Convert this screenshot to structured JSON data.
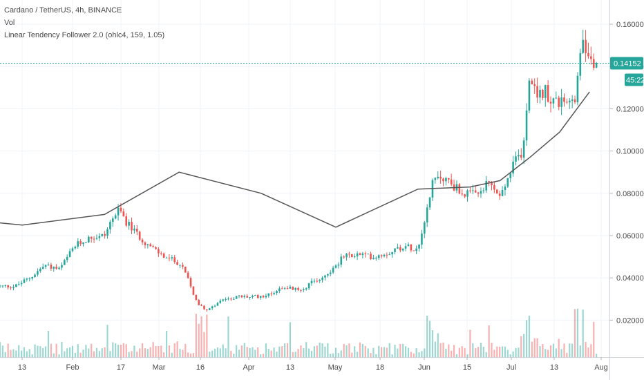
{
  "legend": {
    "symbol_line": "Cardano / TetherUS, 4h, BINANCE",
    "volume_label": "Vol",
    "indicator_label": "Linear Tendency Follower 2.0 (ohlc4, 159, 1.05)"
  },
  "price_axis": {
    "ticks": [
      "0.16000",
      "0.14000",
      "0.12000",
      "0.10000",
      "0.08000",
      "0.06000",
      "0.04000",
      "0.02000"
    ],
    "tick_values": [
      0.16,
      0.14,
      0.12,
      0.1,
      0.08,
      0.06,
      0.04,
      0.02
    ],
    "current_price": "0.14152",
    "current_price_value": 0.14152,
    "countdown": "45:22"
  },
  "time_axis": {
    "labels": [
      "13",
      "Feb",
      "17",
      "Mar",
      "16",
      "Apr",
      "13",
      "May",
      "18",
      "Jun",
      "15",
      "Jul",
      "13",
      "Aug"
    ]
  },
  "colors": {
    "up": "#26a69a",
    "down": "#ef5350",
    "indicator": "#555555",
    "price_line": "#26a69a",
    "grid": "#f0f3fa"
  },
  "chart_data": {
    "type": "candlestick",
    "ylim": [
      0.0,
      0.172
    ],
    "price_path": [
      [
        0,
        0.036
      ],
      [
        2,
        0.036
      ],
      [
        4,
        0.04
      ],
      [
        6,
        0.046
      ],
      [
        8,
        0.044
      ],
      [
        10,
        0.055
      ],
      [
        12,
        0.059
      ],
      [
        14,
        0.06
      ],
      [
        15,
        0.068
      ],
      [
        16,
        0.072
      ],
      [
        17,
        0.066
      ],
      [
        18,
        0.062
      ],
      [
        20,
        0.055
      ],
      [
        22,
        0.05
      ],
      [
        24,
        0.047
      ],
      [
        25,
        0.041
      ],
      [
        26.5,
        0.027
      ],
      [
        28,
        0.025
      ],
      [
        30,
        0.03
      ],
      [
        32,
        0.031
      ],
      [
        34,
        0.031
      ],
      [
        36,
        0.032
      ],
      [
        38,
        0.036
      ],
      [
        40,
        0.034
      ],
      [
        42,
        0.038
      ],
      [
        44,
        0.042
      ],
      [
        46,
        0.05
      ],
      [
        48,
        0.051
      ],
      [
        50,
        0.05
      ],
      [
        52,
        0.052
      ],
      [
        54,
        0.055
      ],
      [
        56,
        0.054
      ],
      [
        57,
        0.07
      ],
      [
        58,
        0.085
      ],
      [
        59,
        0.088
      ],
      [
        60,
        0.086
      ],
      [
        62,
        0.08
      ],
      [
        64,
        0.079
      ],
      [
        65.5,
        0.085
      ],
      [
        67,
        0.078
      ],
      [
        68,
        0.086
      ],
      [
        69,
        0.095
      ],
      [
        70,
        0.1
      ],
      [
        71,
        0.134
      ],
      [
        72,
        0.125
      ],
      [
        73,
        0.129
      ],
      [
        74,
        0.124
      ],
      [
        76,
        0.121
      ],
      [
        77,
        0.125
      ],
      [
        78,
        0.15
      ],
      [
        79,
        0.146
      ],
      [
        80,
        0.141
      ]
    ],
    "tendency_line": [
      [
        0,
        0.066
      ],
      [
        3,
        0.065
      ],
      [
        14,
        0.07
      ],
      [
        24,
        0.09
      ],
      [
        35,
        0.08
      ],
      [
        45,
        0.064
      ],
      [
        56,
        0.082
      ],
      [
        63,
        0.083
      ],
      [
        67,
        0.086
      ],
      [
        71,
        0.097
      ],
      [
        75,
        0.109
      ],
      [
        79,
        0.128
      ]
    ]
  }
}
